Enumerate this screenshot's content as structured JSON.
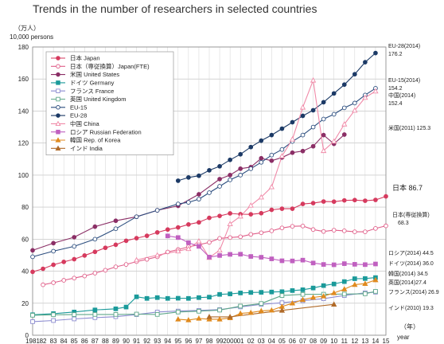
{
  "chart_data": {
    "type": "line",
    "title": "Trends in the number of researchers in selected countries",
    "ylabel": "（万人）",
    "ylabel_sub": "10,000 persons",
    "xlabel": "（年）",
    "xlabel_sub": "year",
    "ylim": [
      0,
      180
    ],
    "yticks": [
      0,
      20,
      40,
      60,
      80,
      100,
      120,
      140,
      160,
      180
    ],
    "xlim": [
      1981,
      2015
    ],
    "xtick_labels": [
      "1981",
      "82",
      "83",
      "84",
      "85",
      "86",
      "87",
      "88",
      "89",
      "90",
      "91",
      "92",
      "93",
      "94",
      "95",
      "96",
      "97",
      "98",
      "99",
      "2000",
      "01",
      "02",
      "03",
      "04",
      "05",
      "06",
      "07",
      "08",
      "09",
      "10",
      "11",
      "12",
      "13",
      "14",
      "15"
    ],
    "grid": true,
    "legend_position": "top-left",
    "series": [
      {
        "name": "日本 Japan",
        "color": "#d63a5e",
        "marker": "circle",
        "filled": true,
        "x": [
          1981,
          1982,
          1983,
          1984,
          1985,
          1986,
          1987,
          1988,
          1989,
          1990,
          1991,
          1992,
          1993,
          1994,
          1995,
          1996,
          1997,
          1998,
          1999,
          2000,
          2001,
          2002,
          2003,
          2004,
          2005,
          2006,
          2007,
          2008,
          2009,
          2010,
          2011,
          2012,
          2013,
          2014,
          2015
        ],
        "y": [
          39.6,
          41.5,
          44.0,
          45.8,
          47.5,
          49.8,
          52.1,
          54.6,
          56.5,
          59.0,
          60.6,
          62.1,
          64.2,
          66.0,
          67.3,
          69.2,
          70.5,
          73.3,
          74.5,
          76.1,
          75.6,
          75.5,
          76.2,
          78.3,
          79.0,
          79.0,
          82.0,
          82.5,
          83.5,
          83.4,
          84.2,
          84.4,
          84.0,
          84.5,
          86.7
        ]
      },
      {
        "name": "日本（専従換算）Japan(FTE)",
        "color": "#e0608a",
        "marker": "circle",
        "filled": false,
        "x": [
          1982,
          1983,
          1984,
          1985,
          1986,
          1987,
          1988,
          1989,
          1990,
          1991,
          1992,
          1993,
          1994,
          1995,
          1996,
          1997,
          1998,
          1999,
          2000,
          2001,
          2002,
          2003,
          2004,
          2005,
          2006,
          2007,
          2008,
          2009,
          2010,
          2011,
          2012,
          2013,
          2014,
          2015
        ],
        "y": [
          31.5,
          32.8,
          34.3,
          35.7,
          37.0,
          38.8,
          40.6,
          42.7,
          44.2,
          46.0,
          47.4,
          49.0,
          52.0,
          53.5,
          55.2,
          56.5,
          58.0,
          60.5,
          61.0,
          61.5,
          63.0,
          64.0,
          65.2,
          67.0,
          68.0,
          68.2,
          66.0,
          64.8,
          65.6,
          65.2,
          64.6,
          64.6,
          66.7,
          68.3
        ]
      },
      {
        "name": "米国 United States",
        "color": "#8b2f66",
        "marker": "circle",
        "filled": true,
        "x": [
          1981,
          1983,
          1985,
          1987,
          1989,
          1991,
          1993,
          1995,
          1997,
          1999,
          2000,
          2001,
          2002,
          2003,
          2004,
          2005,
          2006,
          2007,
          2008,
          2009,
          2010,
          2011
        ],
        "y": [
          53.0,
          57.5,
          61.2,
          67.8,
          71.5,
          74.0,
          78.0,
          80.8,
          88.0,
          97.5,
          100.0,
          104.0,
          105.0,
          110.5,
          109.0,
          111.0,
          114.0,
          115.0,
          118.0,
          125.0,
          119.5,
          125.3
        ]
      },
      {
        "name": "ドイツ Germany",
        "color": "#1a9a9a",
        "marker": "square",
        "filled": true,
        "x": [
          1981,
          1983,
          1985,
          1987,
          1989,
          1990,
          1991,
          1992,
          1993,
          1994,
          1995,
          1996,
          1997,
          1998,
          1999,
          2000,
          2001,
          2002,
          2003,
          2004,
          2005,
          2006,
          2007,
          2008,
          2009,
          2010,
          2011,
          2012,
          2013,
          2014
        ],
        "y": [
          12.8,
          13.5,
          14.5,
          15.8,
          16.5,
          17.6,
          24.0,
          23.0,
          23.5,
          23.0,
          23.1,
          23.0,
          23.5,
          23.8,
          25.5,
          25.8,
          26.4,
          26.7,
          26.8,
          27.0,
          27.2,
          27.9,
          28.4,
          29.5,
          31.0,
          32.0,
          33.5,
          35.3,
          35.4,
          36.0
        ]
      },
      {
        "name": "フランス France",
        "color": "#8c8cd0",
        "marker": "square",
        "filled": false,
        "x": [
          1981,
          1983,
          1985,
          1987,
          1989,
          1991,
          1993,
          1995,
          1997,
          1999,
          2001,
          2003,
          2005,
          2007,
          2009,
          2011,
          2013,
          2014
        ],
        "y": [
          8.5,
          9.2,
          10.2,
          11.0,
          11.6,
          12.9,
          14.5,
          15.1,
          15.5,
          16.0,
          17.7,
          19.3,
          20.3,
          21.6,
          22.8,
          24.8,
          26.5,
          26.9
        ]
      },
      {
        "name": "英国 United Kingdom",
        "color": "#5fa88a",
        "marker": "square",
        "filled": false,
        "x": [
          1981,
          1983,
          1985,
          1987,
          1989,
          1991,
          1993,
          1995,
          1997,
          1999,
          2001,
          2003,
          2005,
          2007,
          2009,
          2011,
          2013,
          2014
        ],
        "y": [
          12.5,
          12.8,
          12.9,
          13.0,
          13.0,
          13.2,
          13.0,
          14.5,
          15.0,
          15.7,
          18.2,
          19.8,
          24.8,
          25.5,
          25.6,
          25.7,
          25.9,
          27.4
        ]
      },
      {
        "name": "EU-15",
        "color": "#2b4d7e",
        "marker": "circle",
        "filled": false,
        "x": [
          1981,
          1983,
          1985,
          1987,
          1989,
          1991,
          1993,
          1995,
          1996,
          1997,
          1998,
          1999,
          2000,
          2001,
          2002,
          2003,
          2004,
          2005,
          2006,
          2007,
          2008,
          2009,
          2010,
          2011,
          2012,
          2013,
          2014
        ],
        "y": [
          49.0,
          52.5,
          55.5,
          60.0,
          66.5,
          74.0,
          78.0,
          82.0,
          83.0,
          85.0,
          89.0,
          93.0,
          97.0,
          100.0,
          104.0,
          108.0,
          112.5,
          116.0,
          121.0,
          125.0,
          130.0,
          135.0,
          138.0,
          142.0,
          145.0,
          150.0,
          154.2
        ]
      },
      {
        "name": "EU-28",
        "color": "#1c3a66",
        "marker": "circle",
        "filled": true,
        "x": [
          1995,
          1996,
          1997,
          1998,
          1999,
          2000,
          2001,
          2002,
          2003,
          2004,
          2005,
          2006,
          2007,
          2008,
          2009,
          2010,
          2011,
          2012,
          2013,
          2014
        ],
        "y": [
          96.5,
          98.5,
          99.6,
          103.0,
          105.5,
          109.5,
          113.0,
          117.5,
          121.5,
          125.0,
          129.0,
          133.0,
          137.0,
          140.5,
          145.5,
          151.0,
          156.5,
          163.0,
          170.5,
          176.2
        ]
      },
      {
        "name": "中国 China",
        "color": "#f08aa8",
        "marker": "triangle",
        "filled": false,
        "x": [
          1991,
          1993,
          1995,
          1996,
          1997,
          1998,
          1999,
          2000,
          2001,
          2002,
          2003,
          2004,
          2005,
          2006,
          2007,
          2008,
          2009,
          2010,
          2011,
          2012,
          2013,
          2014
        ],
        "y": [
          47.0,
          50.0,
          52.5,
          54.0,
          58.8,
          48.5,
          53.1,
          69.5,
          74.3,
          81.1,
          86.2,
          92.6,
          111.9,
          122.4,
          142.3,
          159.2,
          115.2,
          121.1,
          131.8,
          140.4,
          148.4,
          152.4
        ]
      },
      {
        "name": "ロシア Russian Federation",
        "color": "#c060c0",
        "marker": "square",
        "filled": true,
        "x": [
          1994,
          1995,
          1996,
          1997,
          1998,
          1999,
          2000,
          2001,
          2002,
          2003,
          2004,
          2005,
          2006,
          2007,
          2008,
          2009,
          2010,
          2011,
          2012,
          2013,
          2014
        ],
        "y": [
          62.0,
          61.0,
          57.8,
          55.5,
          48.8,
          49.8,
          50.5,
          50.6,
          49.2,
          48.7,
          47.7,
          46.5,
          46.4,
          46.9,
          45.1,
          44.2,
          44.0,
          44.7,
          44.3,
          44.1,
          44.5
        ]
      },
      {
        "name": "韓国 Rep. of Korea",
        "color": "#e08a1e",
        "marker": "triangle",
        "filled": true,
        "x": [
          1995,
          1996,
          1997,
          1998,
          1999,
          2000,
          2001,
          2002,
          2003,
          2004,
          2005,
          2006,
          2007,
          2008,
          2009,
          2010,
          2011,
          2012,
          2013,
          2014
        ],
        "y": [
          10.0,
          9.5,
          10.5,
          10.0,
          10.0,
          10.8,
          13.6,
          14.1,
          15.2,
          15.6,
          17.9,
          20.0,
          22.2,
          23.6,
          24.4,
          26.4,
          28.8,
          31.6,
          32.2,
          34.5
        ]
      },
      {
        "name": "インド India",
        "color": "#b06a28",
        "marker": "triangle",
        "filled": true,
        "x": [
          1998,
          2000,
          2005,
          2010
        ],
        "y": [
          11.5,
          11.5,
          15.5,
          19.3
        ]
      }
    ],
    "end_labels": [
      {
        "lines": [
          "EU-28(2014)",
          "176.2"
        ],
        "series": "EU-28"
      },
      {
        "lines": [
          "EU-15(2014)",
          "154.2"
        ],
        "series": "EU-15"
      },
      {
        "lines": [
          "中国(2014)",
          "152.4"
        ],
        "series": "中国 China"
      },
      {
        "lines": [
          "米国(2011) 125.3"
        ],
        "series": "米国 United States"
      },
      {
        "lines": [
          "日本 86.7"
        ],
        "series": "日本 Japan"
      },
      {
        "lines": [
          "日本(専従換算)",
          "68.3"
        ],
        "series": "日本（専従換算）Japan(FTE)"
      },
      {
        "lines": [
          "ロシア(2014) 44.5"
        ],
        "series": "ロシア Russian Federation"
      },
      {
        "lines": [
          "ドイツ(2014) 36.0"
        ],
        "series": "ドイツ Germany"
      },
      {
        "lines": [
          "韓国(2014) 34.5"
        ],
        "series": "韓国 Rep. of Korea"
      },
      {
        "lines": [
          "英国(2014)27.4"
        ],
        "series": "英国 United Kingdom"
      },
      {
        "lines": [
          "フランス(2014) 26.9"
        ],
        "series": "フランス France"
      },
      {
        "lines": [
          "インド(2010) 19.3"
        ],
        "series": "インド India"
      }
    ]
  }
}
